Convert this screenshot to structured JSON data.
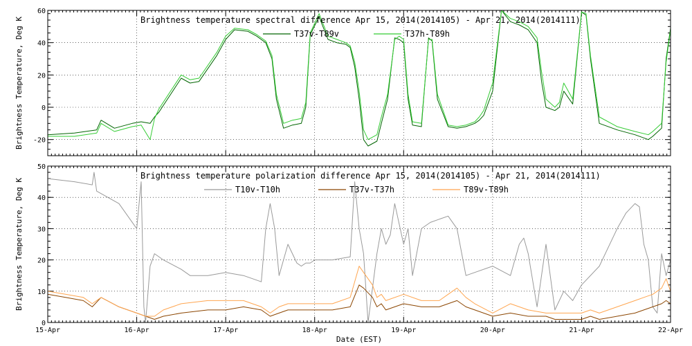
{
  "chart_data": [
    {
      "type": "line",
      "title": "Brightness temperature spectral difference     Apr 15, 2014(2014105) - Apr 21, 2014(2014111)",
      "ylabel": "Brightness Temperature, Deg K",
      "xlabel": "",
      "xlim": [
        0,
        7
      ],
      "ylim": [
        -30,
        60
      ],
      "yticks": [
        -20,
        0,
        20,
        40,
        60
      ],
      "grid": true,
      "legend": "top-center",
      "series": [
        {
          "name": "T37v-T89v",
          "color": "#006400",
          "x": [
            0,
            0.3,
            0.55,
            0.6,
            0.75,
            0.95,
            1.05,
            1.15,
            1.2,
            1.25,
            1.5,
            1.6,
            1.7,
            1.9,
            2.0,
            2.1,
            2.25,
            2.35,
            2.45,
            2.52,
            2.57,
            2.65,
            2.75,
            2.85,
            2.9,
            2.95,
            3.05,
            3.15,
            3.25,
            3.35,
            3.4,
            3.45,
            3.5,
            3.55,
            3.6,
            3.7,
            3.75,
            3.82,
            3.9,
            3.95,
            4.0,
            4.05,
            4.1,
            4.2,
            4.28,
            4.32,
            4.38,
            4.5,
            4.6,
            4.7,
            4.8,
            4.85,
            4.9,
            5.0,
            5.1,
            5.2,
            5.3,
            5.4,
            5.5,
            5.55,
            5.6,
            5.7,
            5.75,
            5.8,
            5.9,
            6.0,
            6.05,
            6.1,
            6.2,
            6.4,
            6.6,
            6.75,
            6.8,
            6.9,
            6.95,
            7.0
          ],
          "y": [
            -17,
            -16,
            -14,
            -8,
            -13,
            -10,
            -9,
            -10,
            -6,
            -3,
            18,
            15,
            16,
            32,
            42,
            48,
            47,
            44,
            40,
            30,
            5,
            -13,
            -11,
            -10,
            0,
            45,
            56,
            42,
            40,
            39,
            37,
            25,
            5,
            -20,
            -24,
            -21,
            -10,
            5,
            43,
            42,
            40,
            5,
            -11,
            -12,
            43,
            41,
            5,
            -12,
            -13,
            -12,
            -10,
            -8,
            -5,
            10,
            60,
            53,
            51,
            48,
            40,
            16,
            0,
            -2,
            0,
            10,
            2,
            59,
            57,
            30,
            -10,
            -14,
            -17,
            -20,
            -18,
            -13,
            30,
            49
          ]
        },
        {
          "name": "T37h-T89h",
          "color": "#33cc33",
          "x": [
            0,
            0.3,
            0.55,
            0.6,
            0.75,
            0.95,
            1.05,
            1.15,
            1.2,
            1.25,
            1.5,
            1.6,
            1.7,
            1.9,
            2.0,
            2.1,
            2.25,
            2.35,
            2.45,
            2.52,
            2.57,
            2.65,
            2.75,
            2.85,
            2.9,
            2.95,
            3.05,
            3.15,
            3.25,
            3.35,
            3.4,
            3.45,
            3.5,
            3.55,
            3.6,
            3.7,
            3.75,
            3.82,
            3.9,
            3.95,
            4.0,
            4.05,
            4.1,
            4.2,
            4.28,
            4.32,
            4.38,
            4.5,
            4.6,
            4.7,
            4.8,
            4.85,
            4.9,
            5.0,
            5.1,
            5.2,
            5.3,
            5.4,
            5.5,
            5.55,
            5.6,
            5.7,
            5.75,
            5.8,
            5.9,
            6.0,
            6.05,
            6.1,
            6.2,
            6.4,
            6.6,
            6.75,
            6.8,
            6.9,
            6.95,
            7.0
          ],
          "y": [
            -18,
            -18,
            -16,
            -10,
            -15,
            -12,
            -11,
            -20,
            -7,
            -1,
            20,
            17,
            18,
            34,
            44,
            49,
            48,
            45,
            41,
            32,
            8,
            -10,
            -8,
            -7,
            3,
            46,
            58,
            44,
            42,
            40,
            38,
            28,
            10,
            -14,
            -20,
            -17,
            -6,
            8,
            42,
            44,
            42,
            8,
            -9,
            -10,
            42,
            42,
            8,
            -11,
            -12,
            -11,
            -9,
            -6,
            -2,
            15,
            60,
            55,
            53,
            50,
            43,
            22,
            5,
            0,
            3,
            15,
            5,
            59,
            58,
            32,
            -6,
            -12,
            -15,
            -17,
            -15,
            -10,
            28,
            48
          ]
        }
      ]
    },
    {
      "type": "line",
      "title": "Brightness temperature polarization difference     Apr 15, 2014(2014105) - Apr 21, 2014(2014111)",
      "ylabel": "Brightness Temperature, Deg K",
      "xlabel": "Date (EST)",
      "xlim": [
        0,
        7
      ],
      "ylim": [
        0,
        50
      ],
      "yticks": [
        0,
        10,
        20,
        30,
        40,
        50
      ],
      "categories": [
        "15-Apr",
        "16-Apr",
        "17-Apr",
        "18-Apr",
        "19-Apr",
        "20-Apr",
        "21-Apr",
        "22-Apr"
      ],
      "grid": true,
      "legend": "top-center",
      "series": [
        {
          "name": "T10v-T10h",
          "color": "#999999",
          "x": [
            0,
            0.3,
            0.5,
            0.52,
            0.55,
            0.8,
            1.0,
            1.05,
            1.08,
            1.1,
            1.15,
            1.2,
            1.3,
            1.5,
            1.6,
            1.8,
            2.0,
            2.2,
            2.4,
            2.45,
            2.5,
            2.55,
            2.6,
            2.65,
            2.7,
            2.8,
            2.85,
            2.9,
            2.95,
            3.0,
            3.2,
            3.4,
            3.45,
            3.5,
            3.55,
            3.6,
            3.7,
            3.75,
            3.8,
            3.85,
            3.9,
            4.0,
            4.05,
            4.1,
            4.2,
            4.3,
            4.4,
            4.5,
            4.6,
            4.7,
            4.8,
            5.0,
            5.2,
            5.3,
            5.35,
            5.4,
            5.5,
            5.6,
            5.7,
            5.8,
            5.9,
            6.0,
            6.2,
            6.4,
            6.5,
            6.6,
            6.65,
            6.7,
            6.75,
            6.8,
            6.85,
            6.9,
            6.95,
            7.0
          ],
          "y": [
            46,
            45,
            44,
            48,
            42,
            38,
            30,
            45,
            5,
            0,
            18,
            22,
            20,
            17,
            15,
            15,
            16,
            15,
            13,
            30,
            38,
            30,
            15,
            20,
            25,
            19,
            18,
            19,
            19,
            20,
            20,
            21,
            45,
            30,
            22,
            0,
            22,
            30,
            25,
            28,
            38,
            25,
            30,
            15,
            30,
            32,
            33,
            34,
            30,
            15,
            16,
            18,
            15,
            25,
            27,
            22,
            5,
            25,
            4,
            10,
            7,
            12,
            18,
            30,
            35,
            38,
            37,
            25,
            20,
            5,
            3,
            22,
            15,
            20
          ]
        },
        {
          "name": "T37v-T37h",
          "color": "#8B4500",
          "x": [
            0,
            0.2,
            0.4,
            0.5,
            0.6,
            0.8,
            1.0,
            1.1,
            1.2,
            1.3,
            1.5,
            1.8,
            2.0,
            2.2,
            2.4,
            2.5,
            2.6,
            2.7,
            2.9,
            3.0,
            3.2,
            3.4,
            3.5,
            3.55,
            3.65,
            3.7,
            3.75,
            3.8,
            4.0,
            4.2,
            4.4,
            4.5,
            4.6,
            4.7,
            4.8,
            5.0,
            5.2,
            5.4,
            5.6,
            5.7,
            5.8,
            6.0,
            6.1,
            6.2,
            6.4,
            6.6,
            6.7,
            6.8,
            6.9,
            6.95,
            7.0
          ],
          "y": [
            9,
            8,
            7,
            5,
            8,
            5,
            3,
            2,
            1,
            2,
            3,
            4,
            4,
            5,
            4,
            2,
            3,
            4,
            4,
            4,
            4,
            5,
            12,
            11,
            8,
            5,
            6,
            4,
            6,
            5,
            5,
            6,
            7,
            5,
            4,
            2,
            3,
            2,
            2,
            1,
            1,
            1,
            2,
            1,
            2,
            3,
            4,
            5,
            6,
            7,
            6
          ]
        },
        {
          "name": "T89v-T89h",
          "color": "#FFA54F",
          "x": [
            0,
            0.2,
            0.4,
            0.5,
            0.6,
            0.8,
            1.0,
            1.1,
            1.2,
            1.3,
            1.5,
            1.8,
            2.0,
            2.2,
            2.4,
            2.5,
            2.6,
            2.7,
            2.9,
            3.0,
            3.2,
            3.4,
            3.5,
            3.55,
            3.65,
            3.7,
            3.75,
            3.8,
            4.0,
            4.2,
            4.4,
            4.5,
            4.6,
            4.7,
            4.8,
            5.0,
            5.2,
            5.4,
            5.6,
            5.7,
            5.8,
            6.0,
            6.1,
            6.2,
            6.4,
            6.6,
            6.7,
            6.8,
            6.9,
            6.95,
            7.0
          ],
          "y": [
            10,
            9,
            8,
            6,
            8,
            5,
            3,
            2,
            2,
            4,
            6,
            7,
            7,
            7,
            5,
            3,
            5,
            6,
            6,
            6,
            6,
            8,
            18,
            16,
            12,
            8,
            9,
            7,
            9,
            7,
            7,
            9,
            11,
            8,
            6,
            3,
            6,
            4,
            3,
            3,
            3,
            3,
            4,
            3,
            5,
            7,
            8,
            9,
            11,
            14,
            10
          ]
        }
      ]
    }
  ]
}
